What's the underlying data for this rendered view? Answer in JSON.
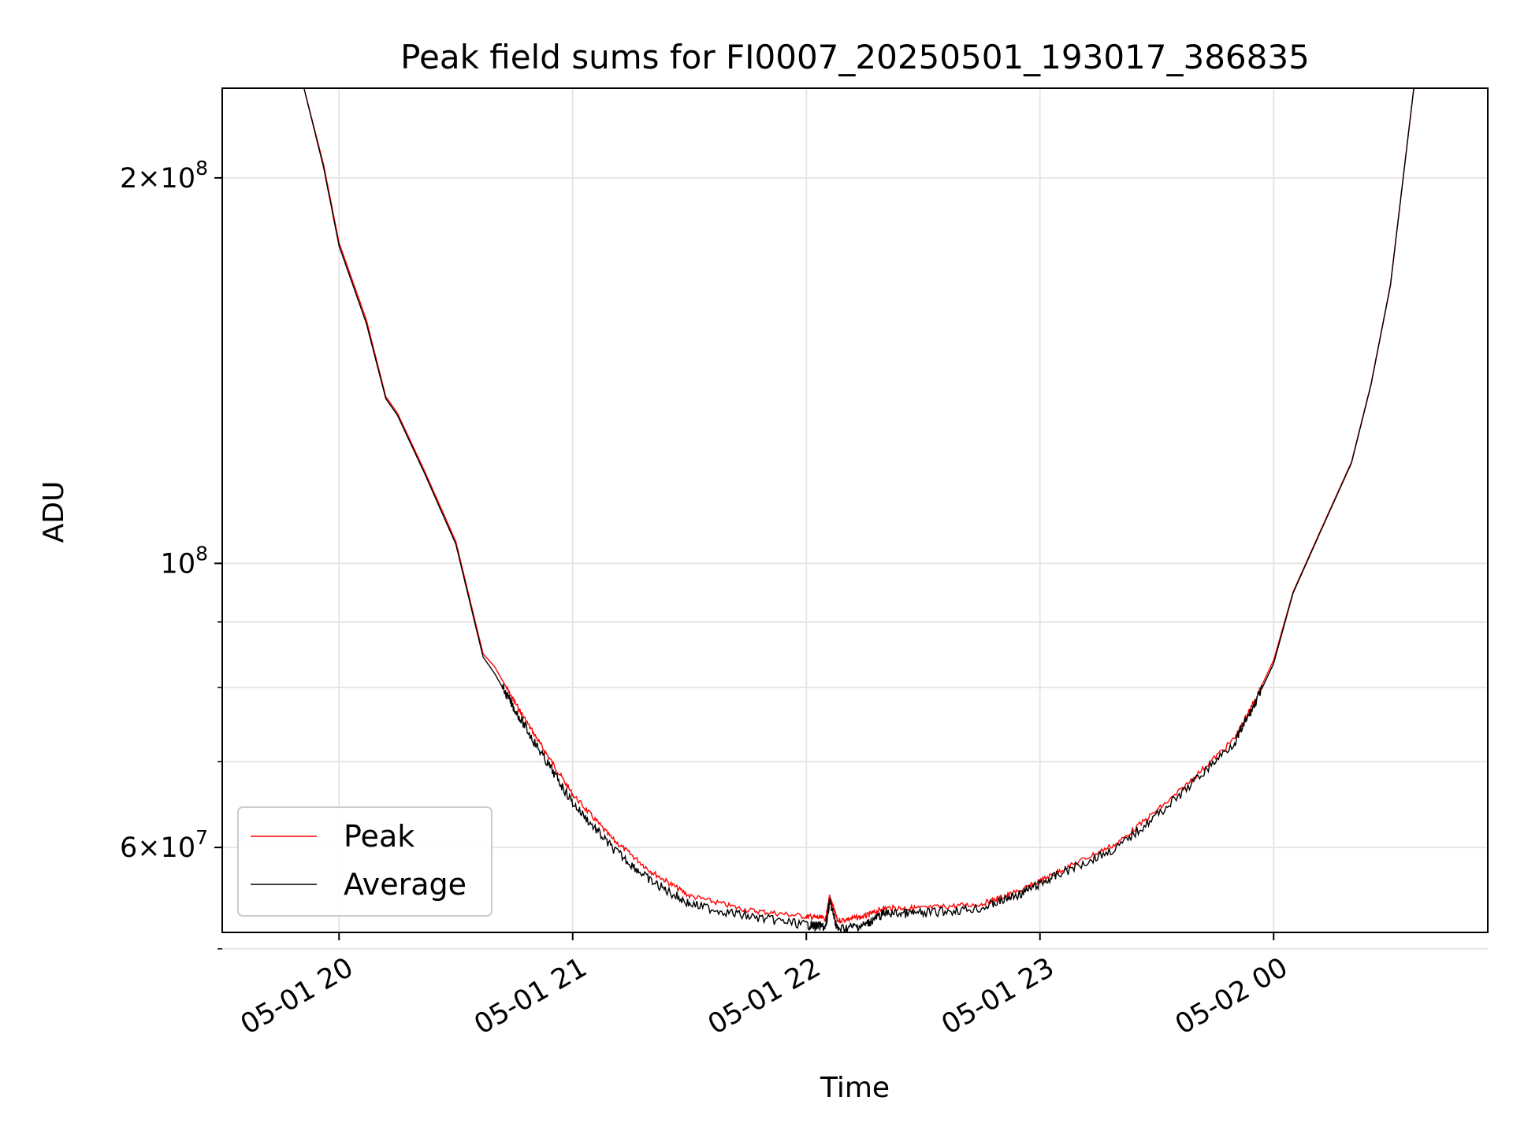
{
  "chart_data": {
    "type": "line",
    "title": "Peak field sums for FI0007_20250501_193017_386835",
    "xlabel": "Time",
    "ylabel": "ADU",
    "x_tick_labels": [
      "05-01 20",
      "05-01 21",
      "05-01 22",
      "05-01 23",
      "05-02 00"
    ],
    "xlim": [
      "2025-05-01 19:30",
      "2025-05-02 00:55"
    ],
    "y_scale": "log",
    "ylim": [
      51500000,
      235000000
    ],
    "y_major_ticks": [
      {
        "value": 200000000,
        "mantissa": "2",
        "base": "10",
        "exponent": "8"
      },
      {
        "value": 100000000,
        "mantissa": "",
        "base": "10",
        "exponent": "8"
      },
      {
        "value": 60000000,
        "mantissa": "6",
        "base": "10",
        "exponent": "7"
      }
    ],
    "y_minor_ticks": [
      90000000,
      80000000,
      70000000,
      50000000
    ],
    "grid": true,
    "legend_position": "lower-left",
    "series": [
      {
        "name": "Peak",
        "color": "#ff0000",
        "x": [
          "2025-05-01 19:51",
          "2025-05-01 19:56",
          "2025-05-01 20:00",
          "2025-05-01 20:07",
          "2025-05-01 20:12",
          "2025-05-01 20:15",
          "2025-05-01 20:22",
          "2025-05-01 20:30",
          "2025-05-01 20:35",
          "2025-05-01 20:37",
          "2025-05-01 20:40",
          "2025-05-01 20:45",
          "2025-05-01 20:52",
          "2025-05-01 21:00",
          "2025-05-01 21:10",
          "2025-05-01 21:20",
          "2025-05-01 21:30",
          "2025-05-01 21:45",
          "2025-05-01 22:00",
          "2025-05-01 22:05",
          "2025-05-01 22:06",
          "2025-05-01 22:08",
          "2025-05-01 22:15",
          "2025-05-01 22:20",
          "2025-05-01 22:30",
          "2025-05-01 22:45",
          "2025-05-01 22:55",
          "2025-05-01 23:05",
          "2025-05-01 23:20",
          "2025-05-01 23:35",
          "2025-05-01 23:50",
          "2025-05-01 23:55",
          "2025-05-02 00:00",
          "2025-05-02 00:05",
          "2025-05-02 00:12",
          "2025-05-02 00:20",
          "2025-05-02 00:25",
          "2025-05-02 00:30",
          "2025-05-02 00:36"
        ],
        "y": [
          235000000,
          205000000,
          178000000,
          155000000,
          135000000,
          131000000,
          118000000,
          104000000,
          90000000,
          85000000,
          83000000,
          78000000,
          72000000,
          66000000,
          61000000,
          57500000,
          55000000,
          53600000,
          53000000,
          52800000,
          55000000,
          52600000,
          53000000,
          53800000,
          53800000,
          54200000,
          55500000,
          57500000,
          60500000,
          66000000,
          73000000,
          78000000,
          84000000,
          95000000,
          106000000,
          120000000,
          138000000,
          165000000,
          235000000
        ]
      },
      {
        "name": "Average",
        "color": "#000000",
        "x": [
          "2025-05-01 19:51",
          "2025-05-01 19:56",
          "2025-05-01 20:00",
          "2025-05-01 20:07",
          "2025-05-01 20:12",
          "2025-05-01 20:15",
          "2025-05-01 20:22",
          "2025-05-01 20:30",
          "2025-05-01 20:35",
          "2025-05-01 20:37",
          "2025-05-01 20:40",
          "2025-05-01 20:45",
          "2025-05-01 20:52",
          "2025-05-01 21:00",
          "2025-05-01 21:10",
          "2025-05-01 21:20",
          "2025-05-01 21:30",
          "2025-05-01 21:45",
          "2025-05-01 22:00",
          "2025-05-01 22:05",
          "2025-05-01 22:06",
          "2025-05-01 22:08",
          "2025-05-01 22:15",
          "2025-05-01 22:20",
          "2025-05-01 22:30",
          "2025-05-01 22:45",
          "2025-05-01 22:55",
          "2025-05-01 23:05",
          "2025-05-01 23:20",
          "2025-05-01 23:35",
          "2025-05-01 23:50",
          "2025-05-01 23:55",
          "2025-05-02 00:00",
          "2025-05-02 00:05",
          "2025-05-02 00:12",
          "2025-05-02 00:20",
          "2025-05-02 00:25",
          "2025-05-02 00:30",
          "2025-05-02 00:36"
        ],
        "y": [
          235000000,
          204000000,
          177000000,
          154000000,
          134500000,
          130500000,
          117500000,
          103500000,
          89500000,
          84500000,
          82000000,
          77000000,
          71000000,
          65000000,
          60000000,
          56500000,
          54200000,
          53000000,
          52200000,
          52000000,
          54500000,
          51800000,
          52200000,
          53300000,
          53300000,
          53800000,
          55200000,
          57200000,
          60000000,
          65500000,
          72500000,
          77500000,
          83500000,
          94800000,
          105800000,
          119800000,
          137800000,
          164800000,
          235000000
        ]
      }
    ]
  }
}
